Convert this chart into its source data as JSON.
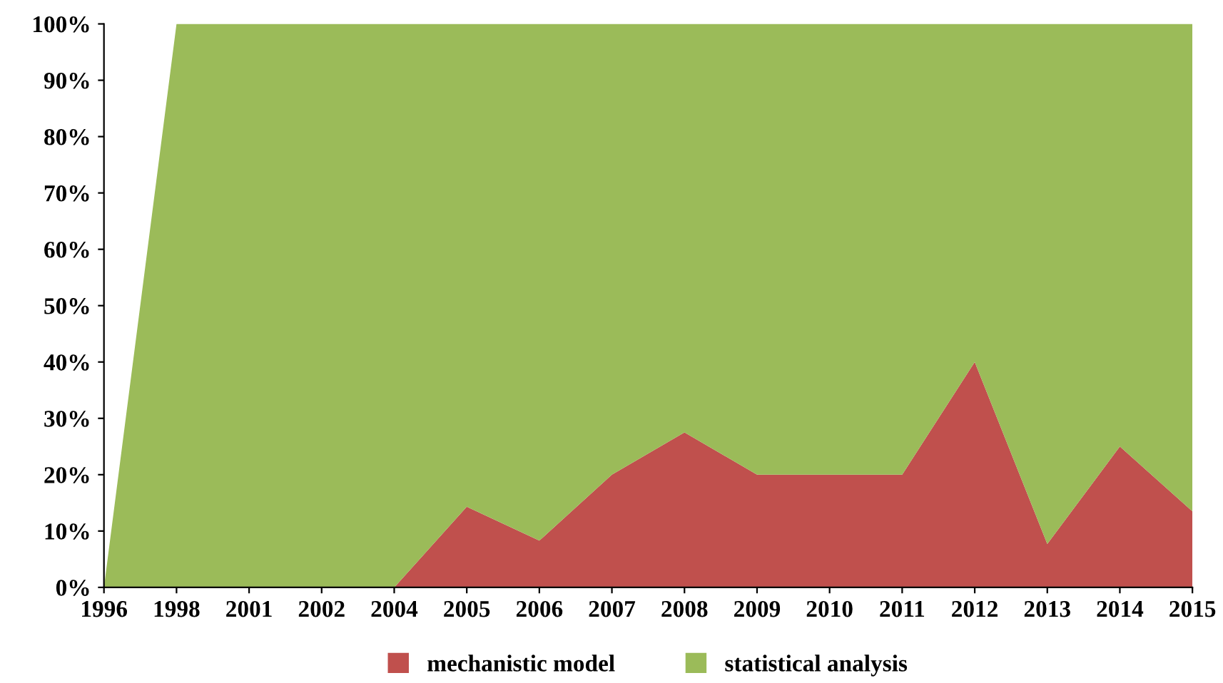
{
  "chart_data": {
    "type": "area",
    "stacked": true,
    "categories": [
      "1996",
      "1998",
      "2001",
      "2002",
      "2004",
      "2005",
      "2006",
      "2007",
      "2008",
      "2009",
      "2010",
      "2011",
      "2012",
      "2013",
      "2014",
      "2015"
    ],
    "series": [
      {
        "name": "mechanistic model",
        "color": "#c0504d",
        "values": [
          0,
          0,
          0,
          0,
          0,
          14.3,
          8.3,
          20,
          27.5,
          20,
          20,
          20,
          40,
          7.7,
          25,
          13.5
        ]
      },
      {
        "name": "statistical analysis",
        "color": "#9bbb59",
        "values": [
          0,
          100,
          100,
          100,
          100,
          85.7,
          91.7,
          80,
          72.5,
          80,
          80,
          80,
          60,
          92.3,
          75,
          86.5
        ]
      }
    ],
    "ylim": [
      0,
      100
    ],
    "yticks": [
      {
        "value": 0,
        "label": "0%"
      },
      {
        "value": 10,
        "label": "10%"
      },
      {
        "value": 20,
        "label": "20%"
      },
      {
        "value": 30,
        "label": "30%"
      },
      {
        "value": 40,
        "label": "40%"
      },
      {
        "value": 50,
        "label": "50%"
      },
      {
        "value": 60,
        "label": "60%"
      },
      {
        "value": 70,
        "label": "70%"
      },
      {
        "value": 80,
        "label": "80%"
      },
      {
        "value": 90,
        "label": "90%"
      },
      {
        "value": 100,
        "label": "100%"
      }
    ],
    "grid": false,
    "legend": "bottom"
  }
}
